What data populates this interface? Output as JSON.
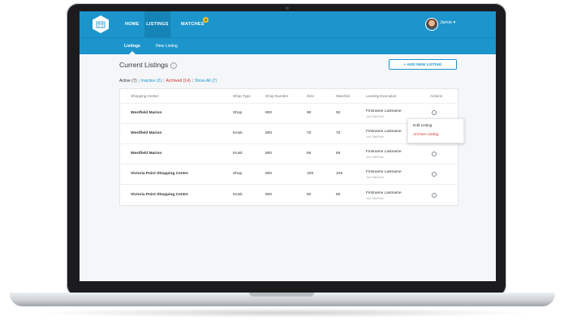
{
  "nav": {
    "items": [
      "HOME",
      "LISTINGS",
      "MATCHES"
    ],
    "matches_badge": "3",
    "user_name": "Jamie"
  },
  "subnav": {
    "items": [
      "Listings",
      "New Listing"
    ]
  },
  "page": {
    "title": "Current Listings",
    "add_button": "+ ADD NEW LISTING"
  },
  "filters": {
    "active": "Active (7)",
    "inactive": "Inactive (2)",
    "archived": "Archived (14)",
    "show_all": "Show All (7)"
  },
  "table": {
    "headers": [
      "Shopping Center",
      "Shop Type",
      "Shop Number",
      "Size",
      "Matches",
      "Leasing Executive",
      "Actions"
    ],
    "rows": [
      {
        "center": "Westfield Marion",
        "type": "Shop",
        "number": "800",
        "size": "90",
        "matches": "92",
        "exec": "Firstname Lastname",
        "exec_sub": "Job Title/Role"
      },
      {
        "center": "Westfield Marion",
        "type": "Kiosk",
        "number": "800",
        "size": "70",
        "matches": "70",
        "exec": "Firstname Lastname",
        "exec_sub": "Job Title/Role"
      },
      {
        "center": "Westfield Marion",
        "type": "Kiosk",
        "number": "800",
        "size": "66",
        "matches": "66",
        "exec": "Firstname Lastname",
        "exec_sub": "Job Title/Role"
      },
      {
        "center": "Victoria Point Shopping Centre",
        "type": "Shop",
        "number": "800",
        "size": "109",
        "matches": "109",
        "exec": "Firstname Lastname",
        "exec_sub": "Job Title/Role"
      },
      {
        "center": "Victoria Point Shopping Centre",
        "type": "Kiosk",
        "number": "800",
        "size": "80",
        "matches": "80",
        "exec": "Firstname Lastname",
        "exec_sub": "Job Title/Role"
      }
    ]
  },
  "actions_menu": {
    "edit": "Edit Listing",
    "archive": "Archive Listing"
  },
  "colors": {
    "primary": "#1b95cc",
    "danger": "#d0312d",
    "badge": "#f4c21b"
  }
}
